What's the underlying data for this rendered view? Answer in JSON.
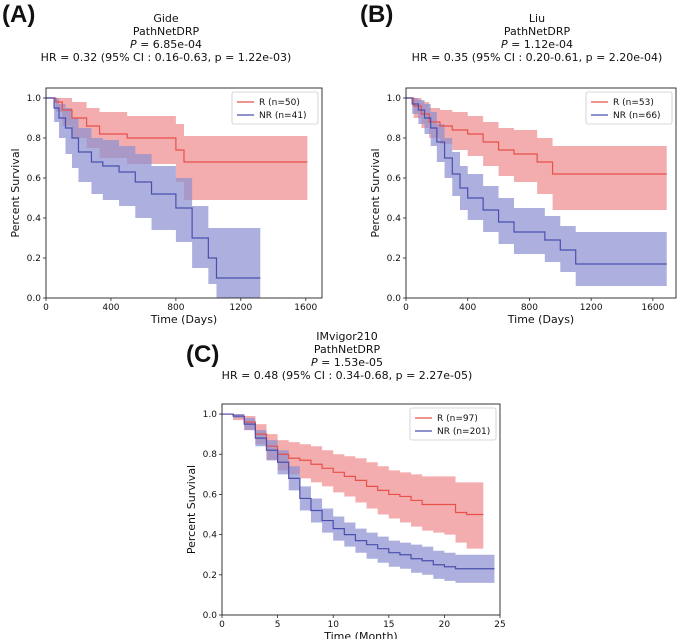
{
  "colors": {
    "R": "#e8504a",
    "NR": "#4a4fae",
    "R_fill": "#f08a8c",
    "NR_fill": "#8a8ed0"
  },
  "chart_data": [
    {
      "type": "line",
      "panel": "(A)",
      "title": "Gide",
      "subtitle": "PathNetDRP",
      "p_label": "P",
      "p_value": "= 6.85e-04",
      "hr": "HR = 0.32 (95% CI : 0.16-0.63, p = 1.22e-03)",
      "xlabel": "Time (Days)",
      "ylabel": "Percent Survival",
      "xlim": [
        0,
        1700
      ],
      "ylim": [
        0,
        1.05
      ],
      "xticks": [
        0,
        400,
        800,
        1200,
        1600
      ],
      "yticks": [
        0.0,
        0.2,
        0.4,
        0.6,
        0.8,
        1.0
      ],
      "legend_position": "top-right",
      "series": [
        {
          "name": "R (n=50)",
          "group": "R",
          "x": [
            0,
            60,
            100,
            160,
            250,
            330,
            500,
            650,
            800,
            850,
            1610
          ],
          "y": [
            1.0,
            0.98,
            0.94,
            0.9,
            0.86,
            0.82,
            0.8,
            0.8,
            0.74,
            0.68,
            0.68
          ],
          "lower": [
            1.0,
            0.93,
            0.86,
            0.8,
            0.75,
            0.7,
            0.67,
            0.67,
            0.58,
            0.49,
            0.49
          ],
          "upper": [
            1.0,
            1.0,
            1.0,
            0.98,
            0.95,
            0.93,
            0.91,
            0.91,
            0.87,
            0.81,
            0.81
          ]
        },
        {
          "name": "NR (n=41)",
          "group": "NR",
          "x": [
            0,
            50,
            80,
            120,
            160,
            200,
            280,
            350,
            450,
            550,
            650,
            800,
            900,
            1000,
            1050,
            1320
          ],
          "y": [
            1.0,
            0.95,
            0.9,
            0.85,
            0.8,
            0.73,
            0.68,
            0.66,
            0.63,
            0.58,
            0.52,
            0.45,
            0.3,
            0.2,
            0.1,
            0.1
          ],
          "lower": [
            1.0,
            0.88,
            0.8,
            0.72,
            0.65,
            0.58,
            0.52,
            0.49,
            0.46,
            0.4,
            0.34,
            0.28,
            0.15,
            0.07,
            0.0,
            0.0
          ],
          "upper": [
            1.0,
            1.0,
            0.97,
            0.95,
            0.9,
            0.85,
            0.8,
            0.79,
            0.76,
            0.72,
            0.66,
            0.6,
            0.46,
            0.35,
            0.35,
            0.35
          ]
        }
      ]
    },
    {
      "type": "line",
      "panel": "(B)",
      "title": "Liu",
      "subtitle": "PathNetDRP",
      "p_label": "P",
      "p_value": "= 1.12e-04",
      "hr": "HR = 0.35 (95% CI : 0.20-0.61, p = 2.20e-04)",
      "xlabel": "Time (Days)",
      "ylabel": "Percent Survival",
      "xlim": [
        0,
        1750
      ],
      "ylim": [
        0,
        1.05
      ],
      "xticks": [
        0,
        400,
        800,
        1200,
        1600
      ],
      "yticks": [
        0.0,
        0.2,
        0.4,
        0.6,
        0.8,
        1.0
      ],
      "legend_position": "top-right",
      "series": [
        {
          "name": "R (n=53)",
          "group": "R",
          "x": [
            0,
            50,
            100,
            150,
            220,
            300,
            400,
            500,
            600,
            700,
            850,
            950,
            1690
          ],
          "y": [
            1.0,
            0.96,
            0.92,
            0.88,
            0.86,
            0.84,
            0.82,
            0.78,
            0.74,
            0.72,
            0.68,
            0.62,
            0.62
          ],
          "lower": [
            1.0,
            0.9,
            0.85,
            0.8,
            0.77,
            0.74,
            0.71,
            0.66,
            0.61,
            0.58,
            0.52,
            0.44,
            0.44
          ],
          "upper": [
            1.0,
            1.0,
            0.98,
            0.95,
            0.94,
            0.93,
            0.91,
            0.88,
            0.85,
            0.84,
            0.8,
            0.76,
            0.76
          ]
        },
        {
          "name": "NR (n=66)",
          "group": "NR",
          "x": [
            0,
            40,
            80,
            120,
            160,
            200,
            250,
            300,
            350,
            400,
            500,
            600,
            700,
            900,
            1000,
            1100,
            1690
          ],
          "y": [
            1.0,
            0.97,
            0.94,
            0.9,
            0.85,
            0.78,
            0.7,
            0.62,
            0.55,
            0.5,
            0.44,
            0.38,
            0.33,
            0.29,
            0.24,
            0.17,
            0.17
          ],
          "lower": [
            1.0,
            0.92,
            0.87,
            0.82,
            0.76,
            0.68,
            0.6,
            0.51,
            0.44,
            0.39,
            0.33,
            0.27,
            0.22,
            0.18,
            0.13,
            0.06,
            0.06
          ],
          "upper": [
            1.0,
            1.0,
            0.99,
            0.97,
            0.93,
            0.87,
            0.8,
            0.73,
            0.66,
            0.62,
            0.56,
            0.5,
            0.45,
            0.41,
            0.36,
            0.33,
            0.33
          ]
        }
      ]
    },
    {
      "type": "line",
      "panel": "(C)",
      "title": "IMvigor210",
      "subtitle": "PathNetDRP",
      "p_label": "P",
      "p_value": "= 1.53e-05",
      "hr": "HR = 0.48 (95% CI : 0.34-0.68, p = 2.27e-05)",
      "xlabel": "Time (Month)",
      "ylabel": "Percent Survival",
      "xlim": [
        0,
        25
      ],
      "ylim": [
        0,
        1.05
      ],
      "xticks": [
        0,
        5,
        10,
        15,
        20,
        25
      ],
      "yticks": [
        0.0,
        0.2,
        0.4,
        0.6,
        0.8,
        1.0
      ],
      "legend_position": "top-right",
      "series": [
        {
          "name": "R (n=97)",
          "group": "R",
          "x": [
            0,
            1,
            2,
            3,
            4,
            5,
            6,
            7,
            8,
            9,
            10,
            11,
            12,
            13,
            14,
            15,
            16,
            17,
            18,
            19,
            20,
            21,
            22,
            23.5
          ],
          "y": [
            1.0,
            0.99,
            0.96,
            0.9,
            0.84,
            0.8,
            0.78,
            0.77,
            0.75,
            0.73,
            0.71,
            0.69,
            0.67,
            0.64,
            0.62,
            0.6,
            0.59,
            0.57,
            0.55,
            0.55,
            0.55,
            0.51,
            0.5,
            0.5
          ],
          "lower": [
            1.0,
            0.97,
            0.92,
            0.85,
            0.77,
            0.72,
            0.7,
            0.68,
            0.66,
            0.64,
            0.61,
            0.59,
            0.56,
            0.53,
            0.5,
            0.48,
            0.46,
            0.44,
            0.42,
            0.41,
            0.4,
            0.36,
            0.33,
            0.33
          ],
          "upper": [
            1.0,
            1.0,
            0.99,
            0.95,
            0.9,
            0.87,
            0.86,
            0.85,
            0.84,
            0.82,
            0.8,
            0.79,
            0.78,
            0.76,
            0.74,
            0.72,
            0.71,
            0.7,
            0.69,
            0.69,
            0.69,
            0.66,
            0.66,
            0.66
          ]
        },
        {
          "name": "NR (n=201)",
          "group": "NR",
          "x": [
            0,
            1,
            2,
            3,
            4,
            5,
            6,
            7,
            8,
            9,
            10,
            11,
            12,
            13,
            14,
            15,
            16,
            17,
            18,
            19,
            20,
            21,
            22,
            24.5
          ],
          "y": [
            1.0,
            0.99,
            0.95,
            0.88,
            0.82,
            0.76,
            0.68,
            0.58,
            0.52,
            0.47,
            0.43,
            0.4,
            0.37,
            0.35,
            0.33,
            0.31,
            0.3,
            0.28,
            0.27,
            0.25,
            0.24,
            0.23,
            0.23,
            0.23
          ],
          "lower": [
            1.0,
            0.98,
            0.92,
            0.84,
            0.77,
            0.7,
            0.62,
            0.52,
            0.46,
            0.41,
            0.37,
            0.34,
            0.31,
            0.28,
            0.26,
            0.24,
            0.23,
            0.21,
            0.2,
            0.18,
            0.17,
            0.16,
            0.16,
            0.16
          ],
          "upper": [
            1.0,
            1.0,
            0.98,
            0.92,
            0.87,
            0.82,
            0.74,
            0.64,
            0.58,
            0.53,
            0.49,
            0.46,
            0.43,
            0.41,
            0.39,
            0.37,
            0.36,
            0.35,
            0.34,
            0.32,
            0.31,
            0.3,
            0.3,
            0.3
          ]
        }
      ]
    }
  ]
}
